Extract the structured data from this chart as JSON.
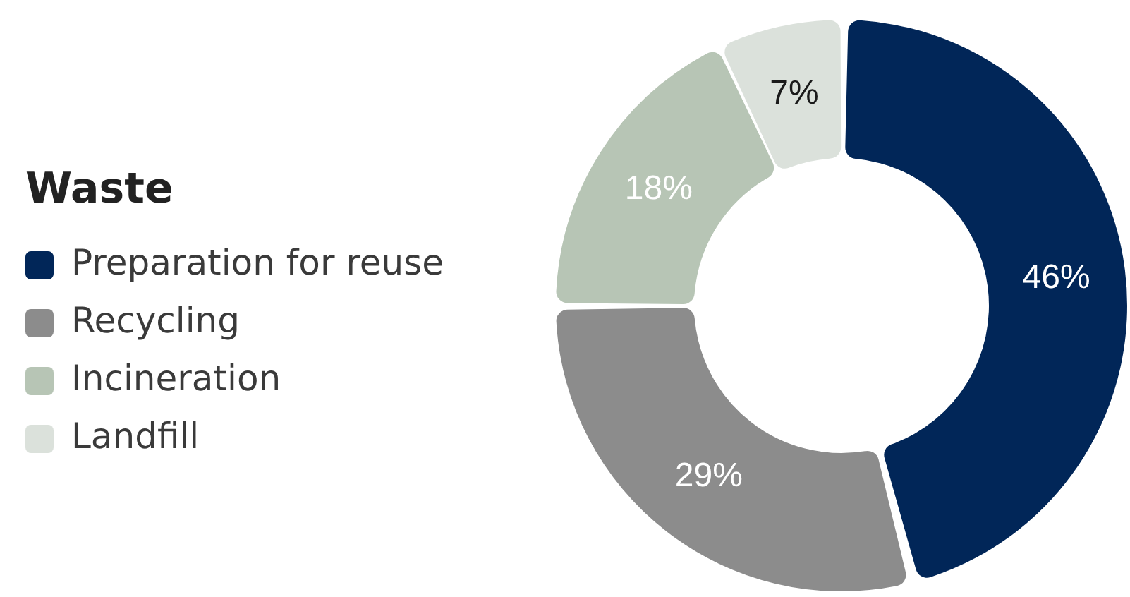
{
  "chart_data": {
    "type": "donut",
    "legend_title": "Waste",
    "legend": "left",
    "categories": [
      "Preparation for reuse",
      "Recycling",
      "Incineration",
      "Landfill"
    ],
    "values": [
      46,
      29,
      18,
      7
    ],
    "colors": [
      "#012658",
      "#8c8c8c",
      "#b7c5b5",
      "#dbe1db"
    ],
    "value_labels": [
      "46%",
      "29%",
      "18%",
      "7%"
    ]
  }
}
